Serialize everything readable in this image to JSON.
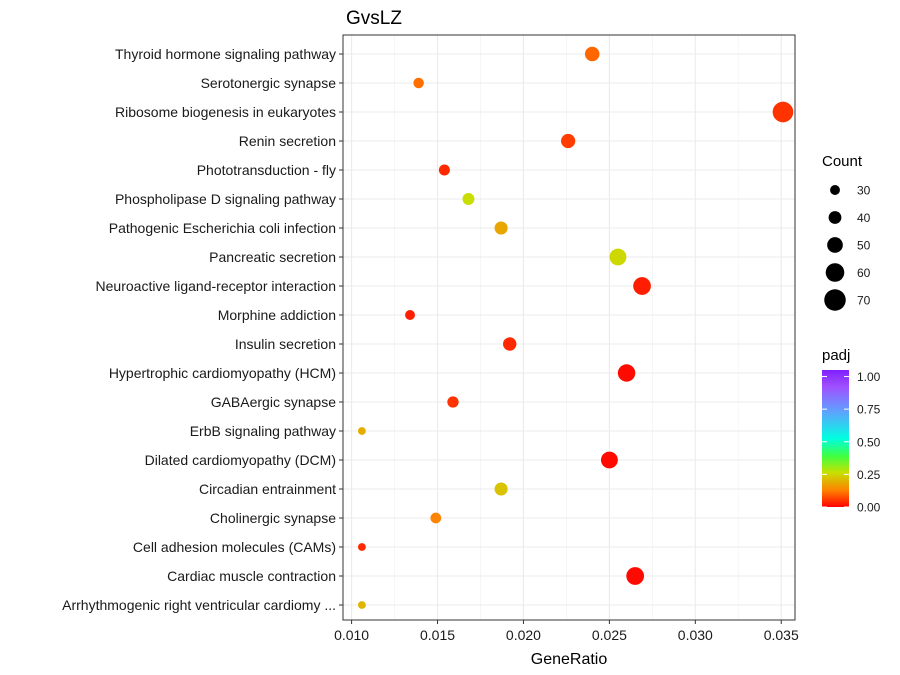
{
  "chart_data": {
    "type": "scatter",
    "title": "GvsLZ",
    "xlabel": "GeneRatio",
    "ylabel": "",
    "xlim": [
      0.0095,
      0.0358
    ],
    "xticks": [
      0.01,
      0.015,
      0.02,
      0.025,
      0.03,
      0.035
    ],
    "xtick_labels": [
      "0.010",
      "0.015",
      "0.020",
      "0.025",
      "0.030",
      "0.035"
    ],
    "grid": true,
    "categories": [
      "Thyroid hormone signaling pathway",
      "Serotonergic synapse",
      "Ribosome biogenesis in eukaryotes",
      "Renin secretion",
      "Phototransduction - fly",
      "Phospholipase D signaling pathway",
      "Pathogenic Escherichia coli infection",
      "Pancreatic secretion",
      "Neuroactive ligand-receptor interaction",
      "Morphine addiction",
      "Insulin secretion",
      "Hypertrophic cardiomyopathy (HCM)",
      "GABAergic synapse",
      "ErbB signaling pathway",
      "Dilated cardiomyopathy (DCM)",
      "Circadian entrainment",
      "Cholinergic synapse",
      "Cell adhesion molecules (CAMs)",
      "Cardiac muscle contraction",
      "Arrhythmogenic right ventricular cardiomy ..."
    ],
    "points": [
      {
        "category": "Thyroid hormone signaling pathway",
        "gene_ratio": 0.024,
        "count": 46,
        "padj": 0.1
      },
      {
        "category": "Serotonergic synapse",
        "gene_ratio": 0.0139,
        "count": 32,
        "padj": 0.11
      },
      {
        "category": "Ribosome biogenesis in eukaryotes",
        "gene_ratio": 0.0351,
        "count": 67,
        "padj": 0.05
      },
      {
        "category": "Renin secretion",
        "gene_ratio": 0.0226,
        "count": 45,
        "padj": 0.06
      },
      {
        "category": "Phototransduction - fly",
        "gene_ratio": 0.0154,
        "count": 34,
        "padj": 0.04
      },
      {
        "category": "Phospholipase D signaling pathway",
        "gene_ratio": 0.0168,
        "count": 37,
        "padj": 0.26
      },
      {
        "category": "Pathogenic Escherichia coli infection",
        "gene_ratio": 0.0187,
        "count": 41,
        "padj": 0.18
      },
      {
        "category": "Pancreatic secretion",
        "gene_ratio": 0.0255,
        "count": 54,
        "padj": 0.25
      },
      {
        "category": "Neuroactive ligand-receptor interaction",
        "gene_ratio": 0.0269,
        "count": 57,
        "padj": 0.03
      },
      {
        "category": "Morphine addiction",
        "gene_ratio": 0.0134,
        "count": 30,
        "padj": 0.03
      },
      {
        "category": "Insulin secretion",
        "gene_ratio": 0.0192,
        "count": 42,
        "padj": 0.04
      },
      {
        "category": "Hypertrophic cardiomyopathy (HCM)",
        "gene_ratio": 0.026,
        "count": 56,
        "padj": 0.01
      },
      {
        "category": "GABAergic synapse",
        "gene_ratio": 0.0159,
        "count": 35,
        "padj": 0.05
      },
      {
        "category": "ErbB signaling pathway",
        "gene_ratio": 0.0106,
        "count": 23,
        "padj": 0.19
      },
      {
        "category": "Dilated cardiomyopathy (DCM)",
        "gene_ratio": 0.025,
        "count": 54,
        "padj": 0.01
      },
      {
        "category": "Circadian entrainment",
        "gene_ratio": 0.0187,
        "count": 41,
        "padj": 0.22
      },
      {
        "category": "Cholinergic synapse",
        "gene_ratio": 0.0149,
        "count": 33,
        "padj": 0.13
      },
      {
        "category": "Cell adhesion molecules (CAMs)",
        "gene_ratio": 0.0106,
        "count": 23,
        "padj": 0.04
      },
      {
        "category": "Cardiac muscle contraction",
        "gene_ratio": 0.0265,
        "count": 57,
        "padj": 0.01
      },
      {
        "category": "Arrhythmogenic right ventricular cardiomy ...",
        "gene_ratio": 0.0106,
        "count": 23,
        "padj": 0.2
      }
    ],
    "legend_size": {
      "title": "Count",
      "values": [
        30,
        40,
        50,
        60,
        70
      ],
      "labels": [
        "30",
        "40",
        "50",
        "60",
        "70"
      ]
    },
    "legend_color": {
      "title": "padj",
      "range": [
        0,
        1.05
      ],
      "ticks": [
        0.0,
        0.25,
        0.5,
        0.75,
        1.0
      ],
      "tick_labels": [
        "0.00",
        "0.25",
        "0.50",
        "0.75",
        "1.00"
      ],
      "gradient": [
        "#ff0000",
        "#ff8000",
        "#c8e000",
        "#40ff40",
        "#00ffe0",
        "#60a0ff",
        "#a050ff",
        "#8020ff"
      ]
    },
    "legend_placement": "right"
  }
}
